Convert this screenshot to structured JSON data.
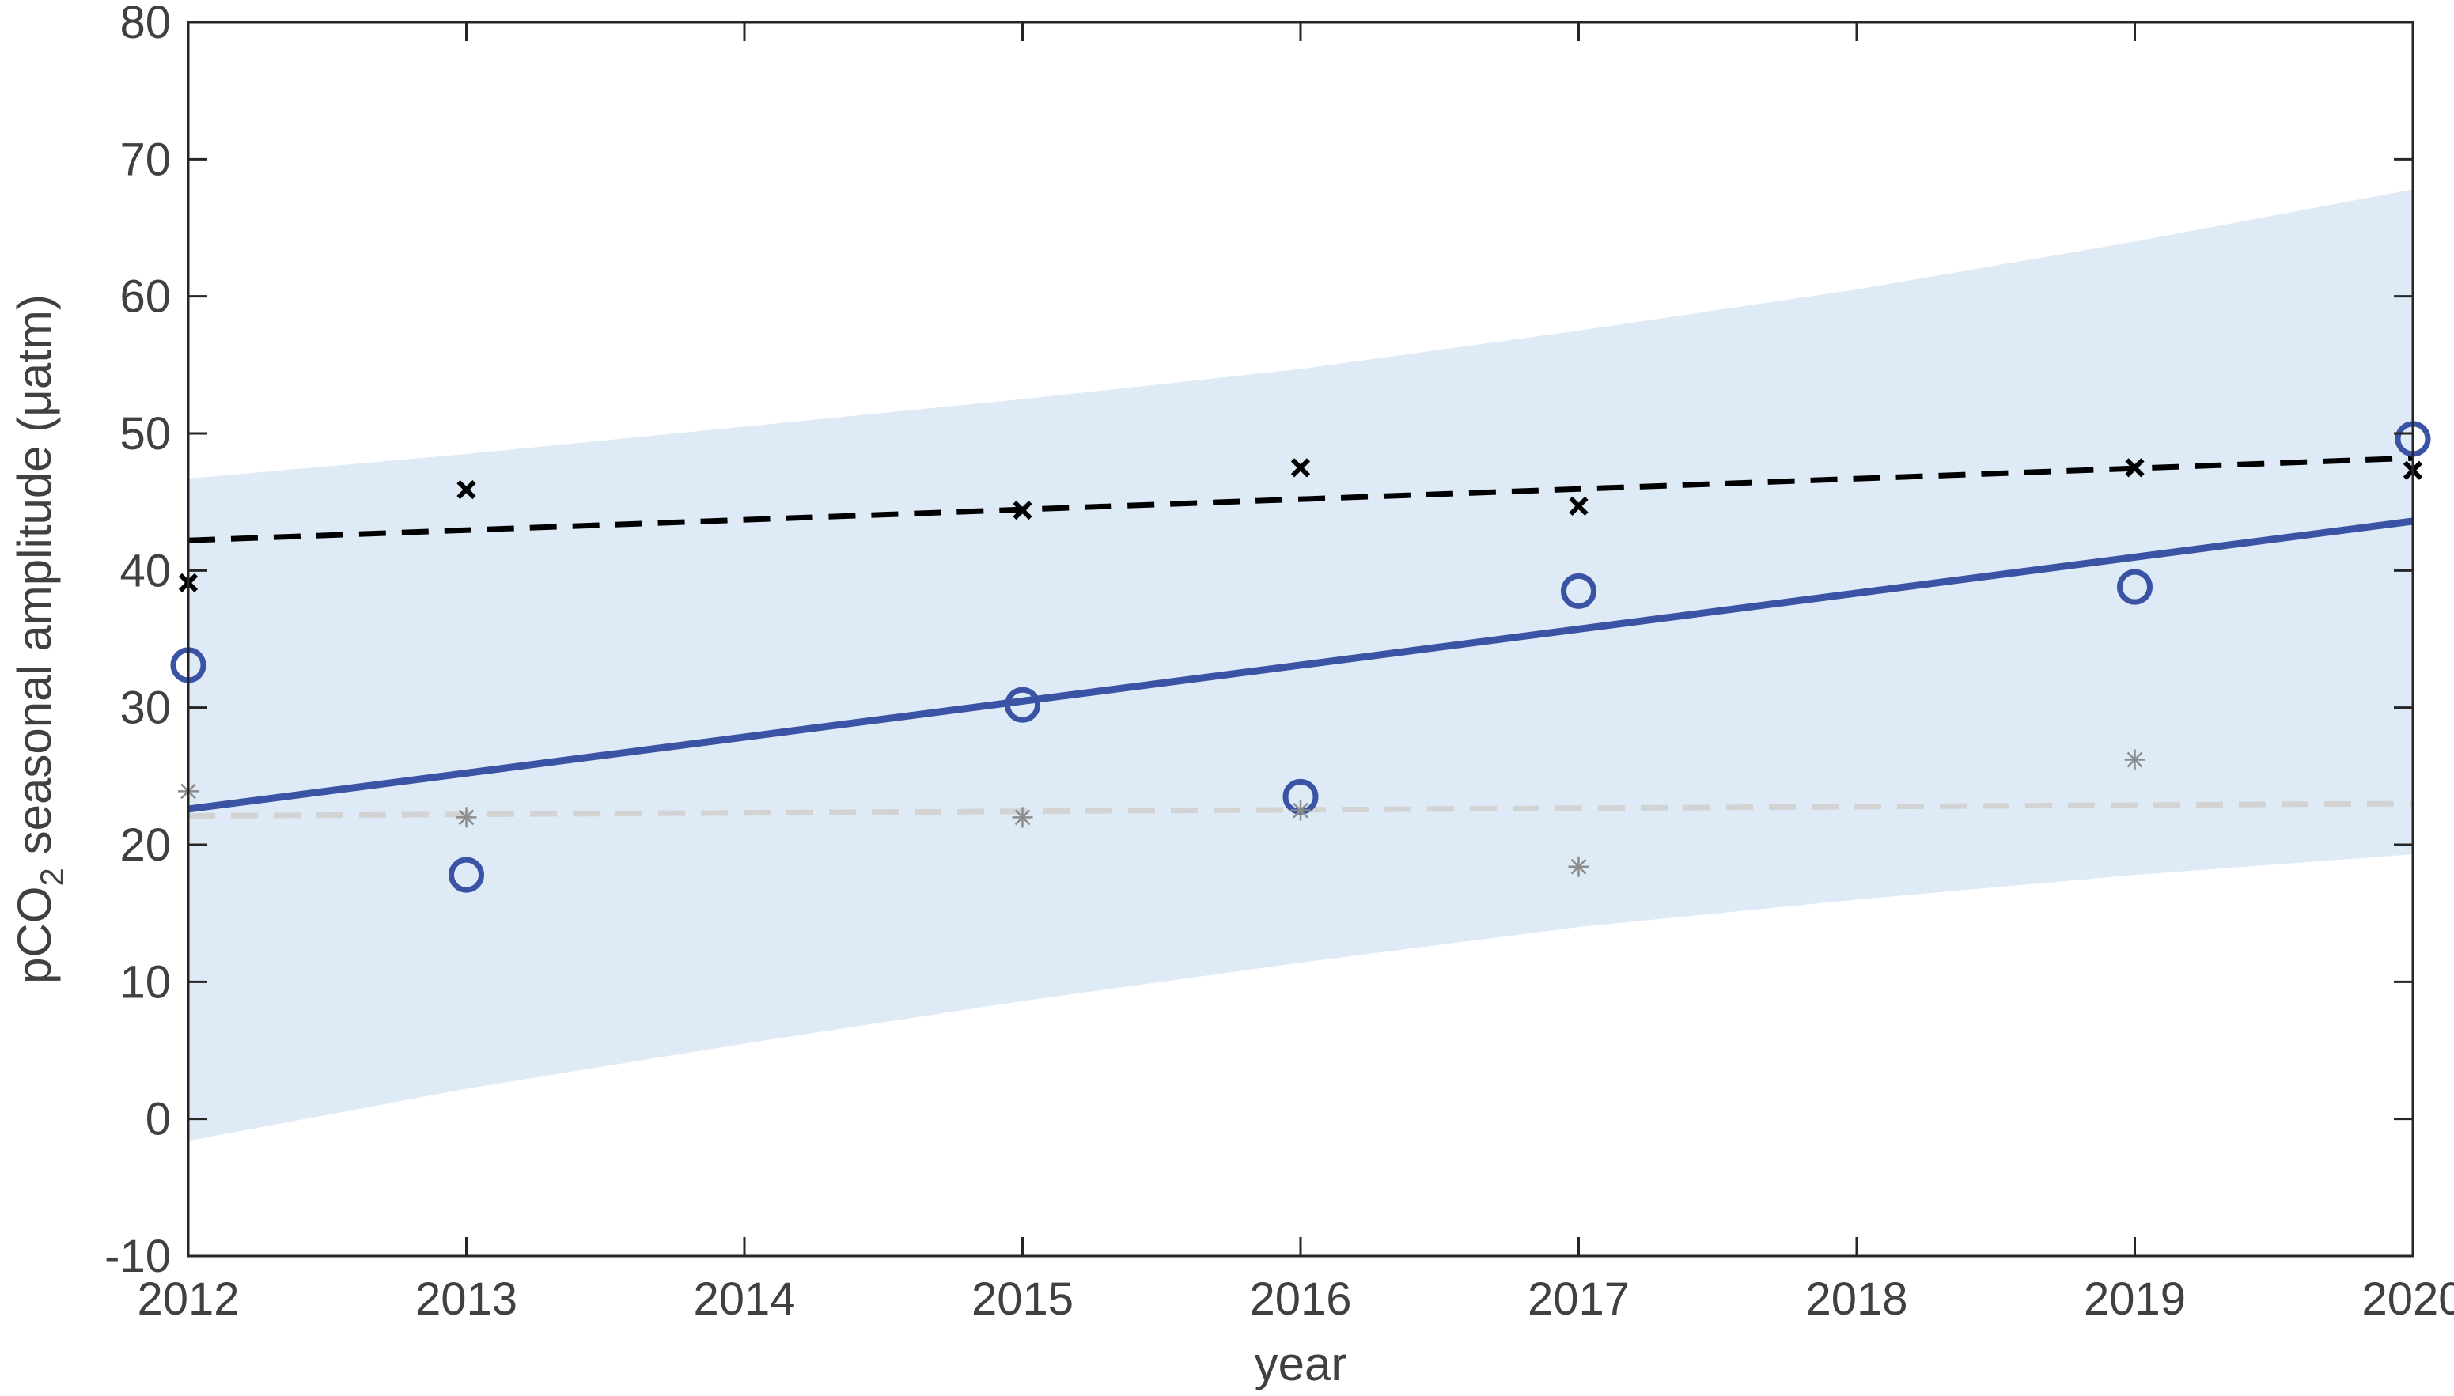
{
  "chart_data": {
    "type": "scatter",
    "title": "",
    "xlabel": "year",
    "ylabel": {
      "prefix": "pCO",
      "subscript": "2",
      "suffix": " seasonal amplitude (μatm)"
    },
    "xlim": [
      2012,
      2020
    ],
    "ylim": [
      -10,
      80
    ],
    "xticks": [
      2012,
      2013,
      2014,
      2015,
      2016,
      2017,
      2018,
      2019,
      2020
    ],
    "yticks": [
      -10,
      0,
      10,
      20,
      30,
      40,
      50,
      60,
      70,
      80
    ],
    "grid": false,
    "legend": null,
    "confidence_band": {
      "color": "#deebf7",
      "x": [
        2012,
        2013,
        2014,
        2015,
        2016,
        2017,
        2018,
        2019,
        2020
      ],
      "upper": [
        46.7,
        48.5,
        50.5,
        52.5,
        54.7,
        57.5,
        60.5,
        64.0,
        67.8
      ],
      "lower": [
        -1.6,
        2.2,
        5.5,
        8.6,
        11.4,
        14.0,
        16.0,
        17.8,
        19.3
      ]
    },
    "series": [
      {
        "marker": "circle",
        "color": "#3a53a4",
        "x": [
          2012,
          2013,
          2015,
          2016,
          2017,
          2019,
          2020
        ],
        "y": [
          33.1,
          17.8,
          30.2,
          23.5,
          38.5,
          38.8,
          49.6
        ]
      },
      {
        "marker": "x",
        "color": "#000000",
        "x": [
          2012,
          2013,
          2015,
          2016,
          2017,
          2019,
          2020
        ],
        "y": [
          39.1,
          45.9,
          44.4,
          47.5,
          44.7,
          47.5,
          47.3
        ]
      },
      {
        "marker": "asterisk",
        "color": "#8c8c8c",
        "x": [
          2012,
          2013,
          2015,
          2016,
          2017,
          2019
        ],
        "y": [
          23.9,
          22.0,
          22.0,
          22.5,
          18.4,
          26.2
        ]
      }
    ],
    "trend_lines": [
      {
        "style": "solid",
        "color": "#3a53a4",
        "x": [
          2012,
          2020
        ],
        "y": [
          22.6,
          43.6
        ]
      },
      {
        "style": "dashed",
        "color": "#000000",
        "x": [
          2012,
          2020
        ],
        "y": [
          42.2,
          48.2
        ]
      },
      {
        "style": "dashed",
        "color": "#d3d3d3",
        "x": [
          2012,
          2020
        ],
        "y": [
          22.1,
          23.0
        ]
      }
    ]
  }
}
